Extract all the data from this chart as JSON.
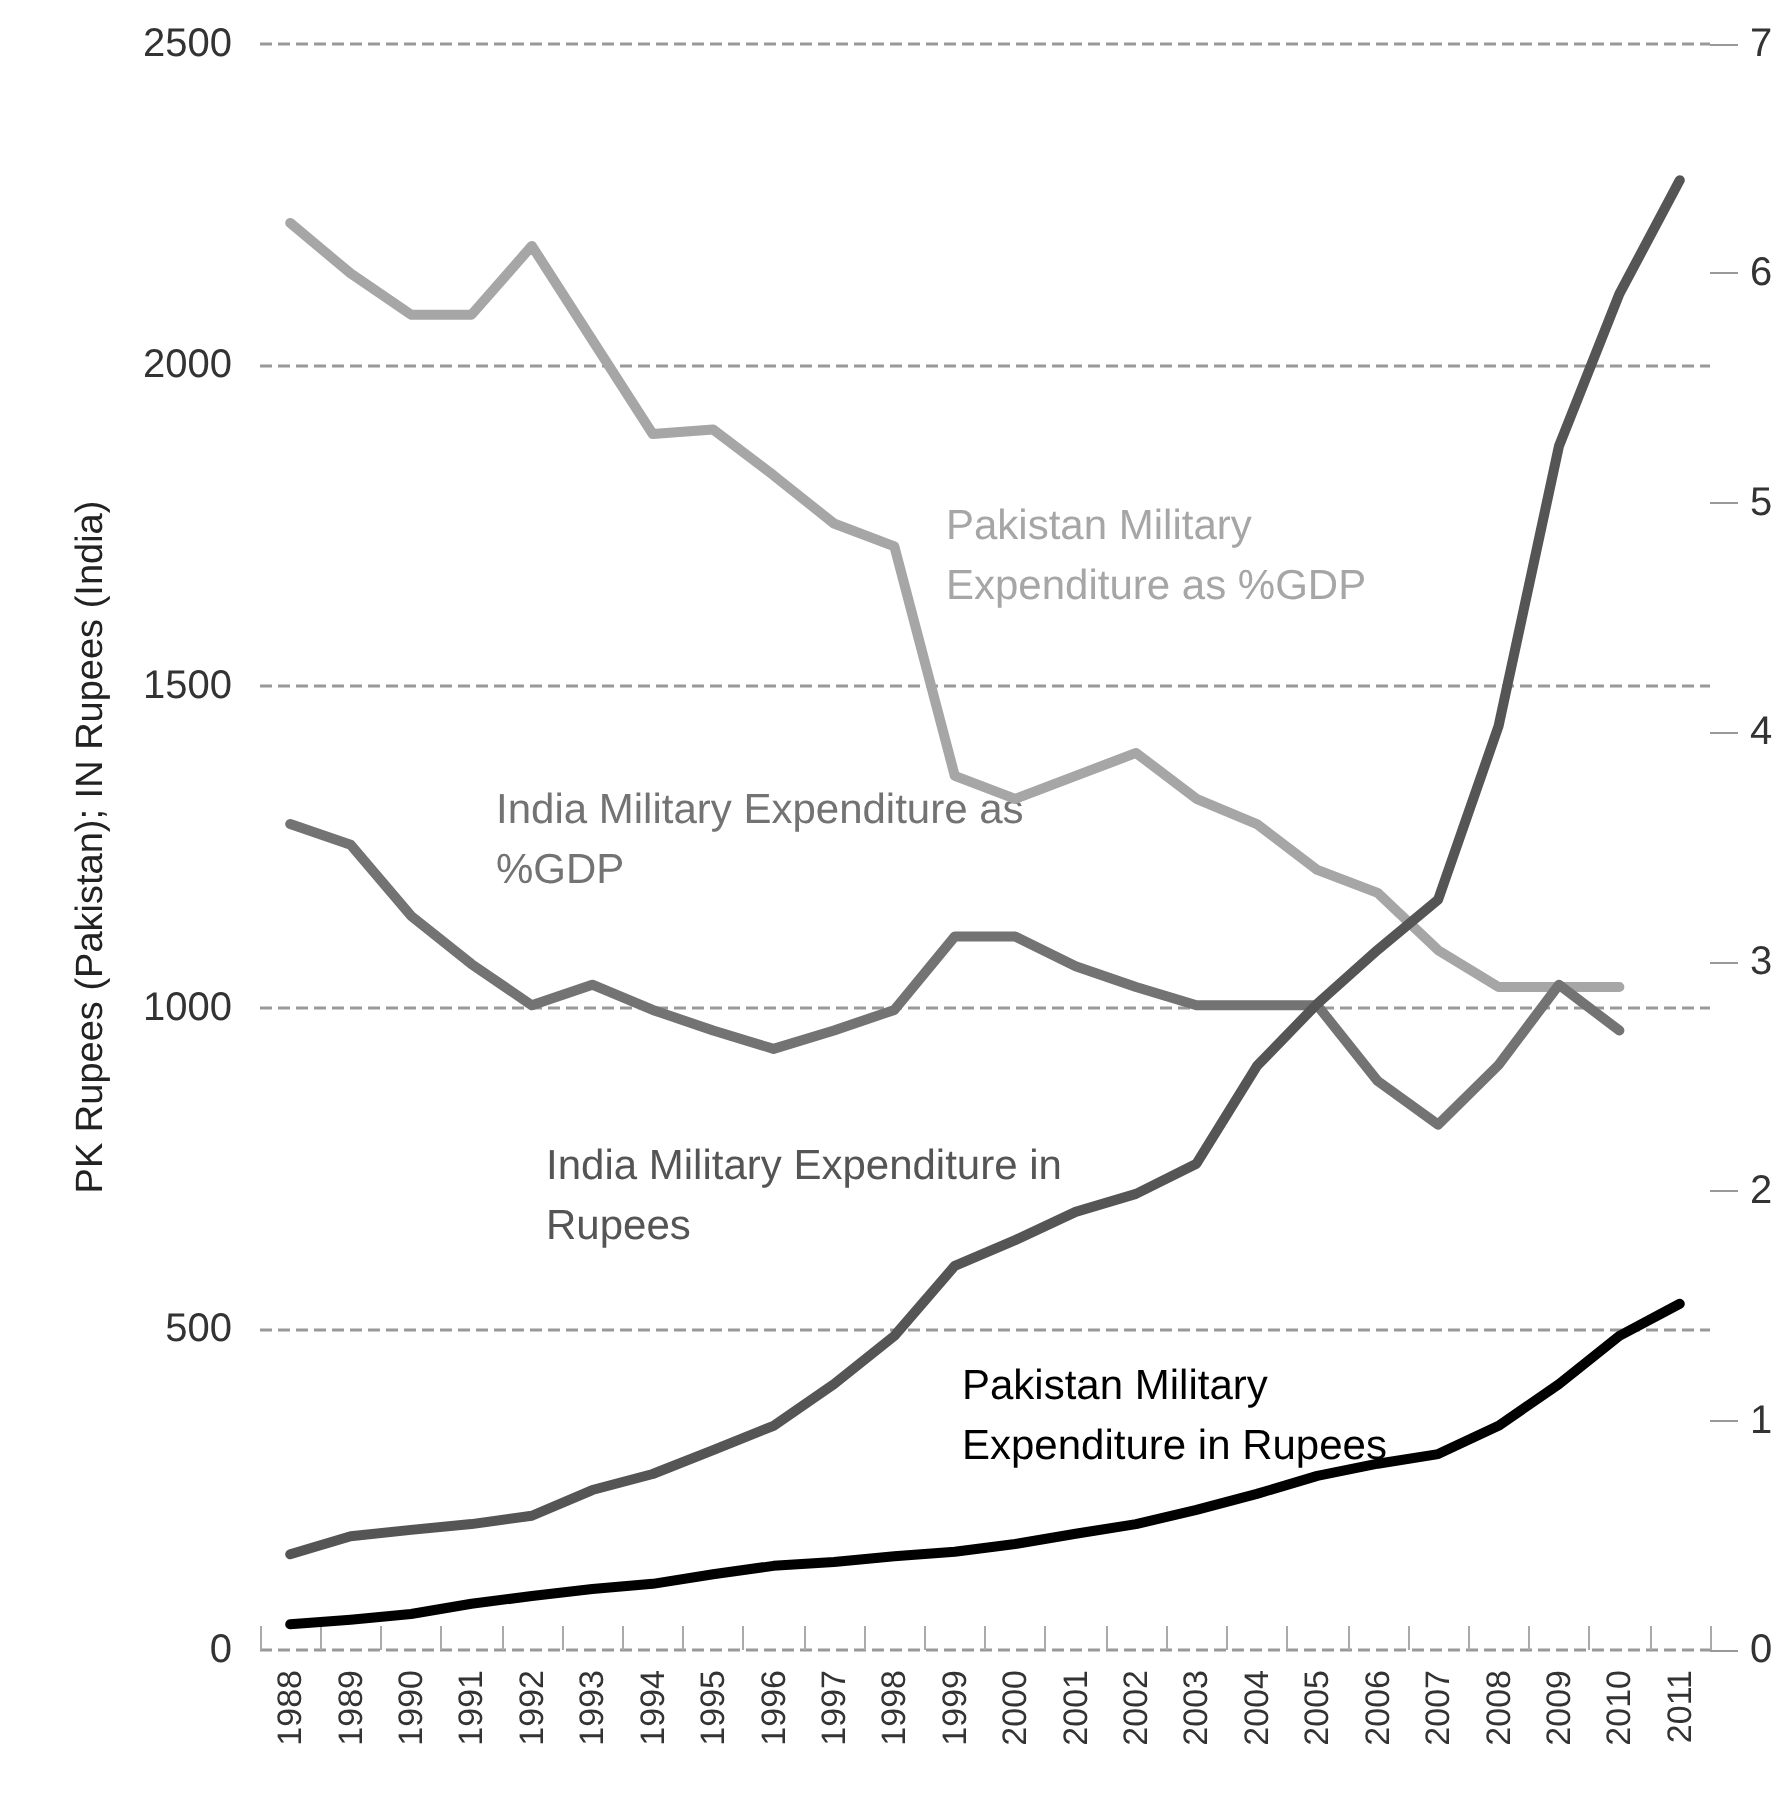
{
  "chart_data": {
    "type": "line",
    "ylabel": "PK Rupees (Pakistan); IN Rupees (India)",
    "categories": [
      "1988",
      "1989",
      "1990",
      "1991",
      "1992",
      "1993",
      "1994",
      "1995",
      "1996",
      "1997",
      "1998",
      "1999",
      "2000",
      "2001",
      "2002",
      "2003",
      "2004",
      "2005",
      "2006",
      "2007",
      "2008",
      "2009",
      "2010",
      "2011"
    ],
    "series": [
      {
        "name": "Pakistan Military Expenditure as %GDP",
        "color": "#a6a6a6",
        "axis": "y2",
        "values": [
          6.22,
          6.0,
          5.82,
          5.82,
          6.12,
          5.71,
          5.3,
          5.32,
          5.12,
          4.91,
          4.81,
          3.81,
          3.71,
          3.81,
          3.91,
          3.71,
          3.6,
          3.4,
          3.3,
          3.05,
          2.89,
          2.89,
          2.89,
          null
        ]
      },
      {
        "name": "India Military Expenditure as %GDP",
        "color": "#737373",
        "axis": "y2",
        "values": [
          3.6,
          3.51,
          3.2,
          2.99,
          2.81,
          2.9,
          2.79,
          2.7,
          2.62,
          2.7,
          2.79,
          3.11,
          3.11,
          2.98,
          2.89,
          2.81,
          2.81,
          2.81,
          2.48,
          2.29,
          2.55,
          2.9,
          2.7,
          null
        ]
      },
      {
        "name": "India Military Expenditure in Rupees",
        "color": "#555555",
        "values": [
          149,
          177,
          187,
          196,
          209,
          249,
          274,
          311,
          349,
          414,
          489,
          598,
          638,
          682,
          710,
          757,
          909,
          1006,
          1090,
          1168,
          1438,
          1874,
          2111,
          2288
        ]
      },
      {
        "name": "Pakistan Military Expenditure in Rupees",
        "color": "#000000",
        "values": [
          40,
          47,
          56,
          72,
          84,
          95,
          103,
          118,
          131,
          137,
          146,
          153,
          165,
          181,
          196,
          218,
          243,
          271,
          290,
          305,
          349,
          414,
          489,
          539
        ]
      }
    ],
    "ylim": [
      0,
      2500
    ],
    "yticks": [
      0,
      500,
      1000,
      1500,
      2000,
      2500
    ],
    "y2lim": [
      0,
      7
    ],
    "y2ticks": [
      0,
      1,
      2,
      3,
      4,
      5,
      6,
      7
    ],
    "grid": "y",
    "legend": false,
    "marker": "none",
    "line_style": "solid"
  }
}
